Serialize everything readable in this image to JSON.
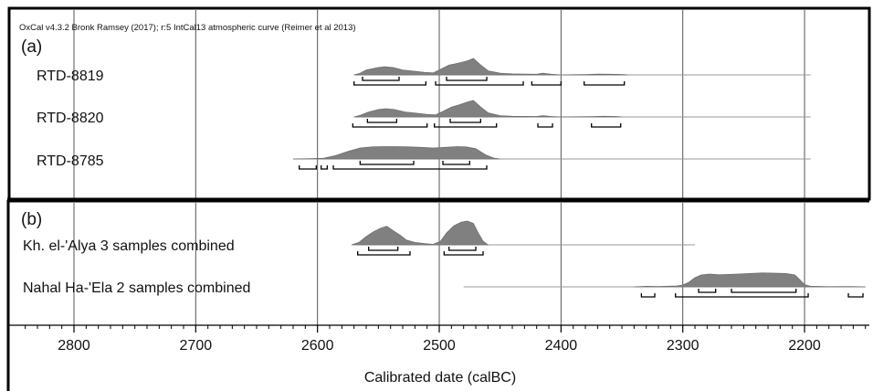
{
  "chart_data": [
    {
      "type": "area",
      "panel": "(a)",
      "header": "OxCal v4.3.2 Bronk Ramsey (2017); r:5 IntCal13 atmospheric curve (Reimer et al 2013)",
      "x_axis": {
        "label": "Calibrated date (calBC)",
        "reversed": true,
        "range": [
          2840,
          2150
        ],
        "ticks": [
          2800,
          2700,
          2600,
          2500,
          2400,
          2300,
          2200
        ]
      },
      "grid": true,
      "series": [
        {
          "name": "RTD-8819",
          "line_range": [
            2570,
            2195
          ],
          "density": [
            [
              2570,
              0
            ],
            [
              2565,
              0.1
            ],
            [
              2560,
              0.3
            ],
            [
              2550,
              0.45
            ],
            [
              2545,
              0.5
            ],
            [
              2538,
              0.45
            ],
            [
              2530,
              0.3
            ],
            [
              2520,
              0.22
            ],
            [
              2512,
              0.15
            ],
            [
              2505,
              0.12
            ],
            [
              2500,
              0.3
            ],
            [
              2492,
              0.6
            ],
            [
              2485,
              0.7
            ],
            [
              2477,
              0.85
            ],
            [
              2472,
              1.0
            ],
            [
              2466,
              0.6
            ],
            [
              2460,
              0.25
            ],
            [
              2450,
              0.1
            ],
            [
              2440,
              0.06
            ],
            [
              2430,
              0.05
            ],
            [
              2420,
              0.04
            ],
            [
              2415,
              0.1
            ],
            [
              2408,
              0.04
            ],
            [
              2400,
              0
            ],
            [
              2380,
              0.02
            ],
            [
              2370,
              0.05
            ],
            [
              2360,
              0.04
            ],
            [
              2350,
              0.03
            ],
            [
              2345,
              0
            ]
          ],
          "ranges_68": [
            [
              2563,
              2533
            ],
            [
              2494,
              2461
            ]
          ],
          "ranges_95": [
            [
              2570,
              2511
            ],
            [
              2503,
              2431
            ],
            [
              2424,
              2400
            ],
            [
              2381,
              2348
            ]
          ]
        },
        {
          "name": "RTD-8820",
          "line_range": [
            2570,
            2195
          ],
          "density": [
            [
              2570,
              0
            ],
            [
              2565,
              0.1
            ],
            [
              2558,
              0.3
            ],
            [
              2550,
              0.45
            ],
            [
              2544,
              0.5
            ],
            [
              2537,
              0.45
            ],
            [
              2528,
              0.3
            ],
            [
              2518,
              0.22
            ],
            [
              2510,
              0.15
            ],
            [
              2503,
              0.12
            ],
            [
              2498,
              0.3
            ],
            [
              2490,
              0.6
            ],
            [
              2483,
              0.75
            ],
            [
              2477,
              0.9
            ],
            [
              2472,
              1.0
            ],
            [
              2466,
              0.6
            ],
            [
              2460,
              0.25
            ],
            [
              2450,
              0.08
            ],
            [
              2440,
              0.04
            ],
            [
              2420,
              0.03
            ],
            [
              2415,
              0.07
            ],
            [
              2408,
              0.03
            ],
            [
              2400,
              0
            ],
            [
              2375,
              0.02
            ],
            [
              2365,
              0.04
            ],
            [
              2355,
              0.03
            ],
            [
              2350,
              0
            ]
          ],
          "ranges_68": [
            [
              2559,
              2535
            ],
            [
              2491,
              2466
            ]
          ],
          "ranges_95": [
            [
              2571,
              2510
            ],
            [
              2504,
              2453
            ],
            [
              2419,
              2407
            ],
            [
              2375,
              2351
            ]
          ]
        },
        {
          "name": "RTD-8785",
          "line_range": [
            2620,
            2195
          ],
          "density": [
            [
              2620,
              0
            ],
            [
              2605,
              0.02
            ],
            [
              2595,
              0.05
            ],
            [
              2585,
              0.25
            ],
            [
              2575,
              0.55
            ],
            [
              2565,
              0.8
            ],
            [
              2555,
              0.88
            ],
            [
              2545,
              0.9
            ],
            [
              2535,
              0.9
            ],
            [
              2525,
              0.88
            ],
            [
              2515,
              0.85
            ],
            [
              2505,
              0.8
            ],
            [
              2495,
              0.85
            ],
            [
              2485,
              0.9
            ],
            [
              2478,
              0.88
            ],
            [
              2470,
              0.75
            ],
            [
              2462,
              0.3
            ],
            [
              2455,
              0.06
            ],
            [
              2450,
              0
            ]
          ],
          "ranges_68": [
            [
              2565,
              2521
            ],
            [
              2497,
              2475
            ]
          ],
          "ranges_95": [
            [
              2615,
              2601
            ],
            [
              2597,
              2592
            ],
            [
              2587,
              2461
            ]
          ]
        }
      ]
    },
    {
      "type": "area",
      "panel": "(b)",
      "x_axis": {
        "label": "Calibrated date (calBC)",
        "reversed": true,
        "range": [
          2840,
          2150
        ],
        "ticks": [
          2800,
          2700,
          2600,
          2500,
          2400,
          2300,
          2200
        ]
      },
      "grid": true,
      "series": [
        {
          "name": "Kh. el-'Alya 3 samples combined",
          "line_range": [
            2570,
            2290
          ],
          "density": [
            [
              2572,
              0
            ],
            [
              2566,
              0.1
            ],
            [
              2560,
              0.35
            ],
            [
              2554,
              0.55
            ],
            [
              2548,
              0.7
            ],
            [
              2543,
              0.78
            ],
            [
              2538,
              0.6
            ],
            [
              2532,
              0.4
            ],
            [
              2527,
              0.2
            ],
            [
              2520,
              0.1
            ],
            [
              2512,
              0.05
            ],
            [
              2505,
              0.02
            ],
            [
              2499,
              0.15
            ],
            [
              2494,
              0.5
            ],
            [
              2488,
              0.8
            ],
            [
              2482,
              0.95
            ],
            [
              2477,
              1.0
            ],
            [
              2472,
              0.9
            ],
            [
              2468,
              0.5
            ],
            [
              2464,
              0.15
            ],
            [
              2460,
              0
            ]
          ],
          "ranges_68": [
            [
              2558,
              2534
            ],
            [
              2492,
              2470
            ]
          ],
          "ranges_95": [
            [
              2567,
              2524
            ],
            [
              2496,
              2464
            ]
          ]
        },
        {
          "name": "Nahal Ha-'Ela 2 samples combined",
          "line_range": [
            2480,
            2150
          ],
          "density": [
            [
              2340,
              0
            ],
            [
              2330,
              0.03
            ],
            [
              2320,
              0.02
            ],
            [
              2305,
              0.05
            ],
            [
              2300,
              0.1
            ],
            [
              2295,
              0.25
            ],
            [
              2290,
              0.5
            ],
            [
              2285,
              0.65
            ],
            [
              2278,
              0.7
            ],
            [
              2270,
              0.66
            ],
            [
              2262,
              0.68
            ],
            [
              2255,
              0.7
            ],
            [
              2245,
              0.73
            ],
            [
              2235,
              0.76
            ],
            [
              2225,
              0.75
            ],
            [
              2215,
              0.73
            ],
            [
              2208,
              0.65
            ],
            [
              2204,
              0.4
            ],
            [
              2200,
              0.12
            ],
            [
              2195,
              0.03
            ],
            [
              2180,
              0.01
            ],
            [
              2165,
              0.02
            ],
            [
              2158,
              0.01
            ],
            [
              2150,
              0
            ]
          ],
          "ranges_68": [
            [
              2287,
              2273
            ],
            [
              2260,
              2207
            ]
          ],
          "ranges_95": [
            [
              2334,
              2323
            ],
            [
              2306,
              2197
            ],
            [
              2164,
              2152
            ]
          ]
        }
      ]
    }
  ]
}
